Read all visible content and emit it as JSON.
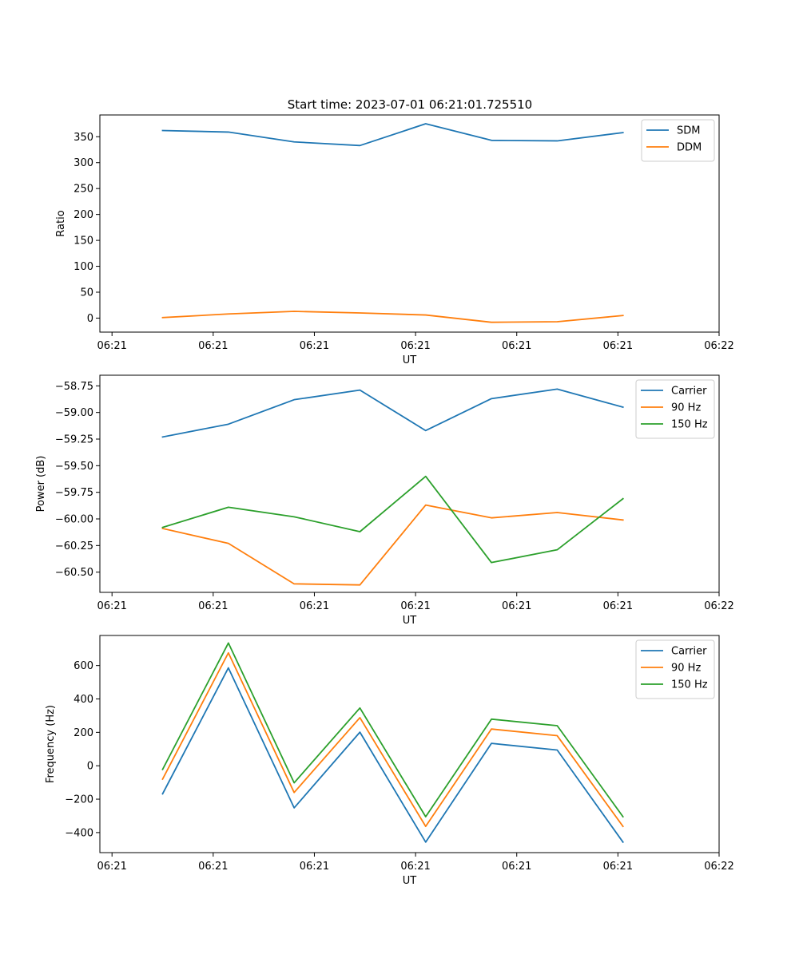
{
  "figure_title": "Start time: 2023-07-01 06:21:01.725510",
  "chart_data": [
    {
      "type": "line",
      "title": "Start time: 2023-07-01 06:21:01.725510",
      "xlabel": "UT",
      "ylabel": "Ratio",
      "x": [
        0.5,
        1.15,
        1.8,
        2.45,
        3.1,
        3.75,
        4.4,
        5.05
      ],
      "x_tick_positions": [
        0,
        1,
        2,
        3,
        4,
        5,
        6
      ],
      "x_tick_labels": [
        "06:21",
        "06:21",
        "06:21",
        "06:21",
        "06:21",
        "06:21",
        "06:22"
      ],
      "xlim": [
        -0.12,
        6.0
      ],
      "ylim": [
        -27,
        392
      ],
      "y_ticks": [
        0,
        50,
        100,
        150,
        200,
        250,
        300,
        350
      ],
      "y_tick_labels": [
        "0",
        "50",
        "100",
        "150",
        "200",
        "250",
        "300",
        "350"
      ],
      "legend_position": "top-right",
      "grid": false,
      "series": [
        {
          "name": "SDM",
          "color": "#1f77b4",
          "values": [
            362,
            359,
            340,
            333,
            375,
            343,
            342,
            358
          ]
        },
        {
          "name": "DDM",
          "color": "#ff7f0e",
          "values": [
            1,
            8,
            13,
            10,
            6,
            -8,
            -7,
            5
          ]
        }
      ]
    },
    {
      "type": "line",
      "xlabel": "UT",
      "ylabel": "Power (dB)",
      "x": [
        0.5,
        1.15,
        1.8,
        2.45,
        3.1,
        3.75,
        4.4,
        5.05
      ],
      "x_tick_positions": [
        0,
        1,
        2,
        3,
        4,
        5,
        6
      ],
      "x_tick_labels": [
        "06:21",
        "06:21",
        "06:21",
        "06:21",
        "06:21",
        "06:21",
        "06:22"
      ],
      "xlim": [
        -0.12,
        6.0
      ],
      "ylim": [
        -60.69,
        -58.65
      ],
      "y_ticks": [
        -60.5,
        -60.25,
        -60.0,
        -59.75,
        -59.5,
        -59.25,
        -59.0,
        -58.75
      ],
      "y_tick_labels": [
        "−60.50",
        "−60.25",
        "−60.00",
        "−59.75",
        "−59.50",
        "−59.25",
        "−59.00",
        "−58.75"
      ],
      "legend_position": "top-right",
      "grid": false,
      "series": [
        {
          "name": "Carrier",
          "color": "#1f77b4",
          "values": [
            -59.23,
            -59.11,
            -58.88,
            -58.79,
            -59.17,
            -58.87,
            -58.78,
            -58.95
          ]
        },
        {
          "name": "90 Hz",
          "color": "#ff7f0e",
          "values": [
            -60.09,
            -60.23,
            -60.61,
            -60.62,
            -59.87,
            -59.99,
            -59.94,
            -60.01
          ]
        },
        {
          "name": "150 Hz",
          "color": "#2ca02c",
          "values": [
            -60.08,
            -59.89,
            -59.98,
            -60.12,
            -59.6,
            -60.41,
            -60.29,
            -59.81
          ]
        }
      ]
    },
    {
      "type": "line",
      "xlabel": "UT",
      "ylabel": "Frequency (Hz)",
      "x": [
        0.5,
        1.15,
        1.8,
        2.45,
        3.1,
        3.75,
        4.4,
        5.05
      ],
      "x_tick_positions": [
        0,
        1,
        2,
        3,
        4,
        5,
        6
      ],
      "x_tick_labels": [
        "06:21",
        "06:21",
        "06:21",
        "06:21",
        "06:21",
        "06:21",
        "06:22"
      ],
      "xlim": [
        -0.12,
        6.0
      ],
      "ylim": [
        -520,
        780
      ],
      "y_ticks": [
        -400,
        -200,
        0,
        200,
        400,
        600
      ],
      "y_tick_labels": [
        "−400",
        "−200",
        "0",
        "200",
        "400",
        "600"
      ],
      "legend_position": "top-right",
      "grid": false,
      "series": [
        {
          "name": "Carrier",
          "color": "#1f77b4",
          "values": [
            -168,
            586,
            -252,
            201,
            -457,
            134,
            94,
            -457
          ]
        },
        {
          "name": "90 Hz",
          "color": "#ff7f0e",
          "values": [
            -80,
            676,
            -160,
            288,
            -363,
            220,
            180,
            -363
          ]
        },
        {
          "name": "150 Hz",
          "color": "#2ca02c",
          "values": [
            -22,
            735,
            -102,
            346,
            -305,
            279,
            240,
            -305
          ]
        }
      ]
    }
  ]
}
